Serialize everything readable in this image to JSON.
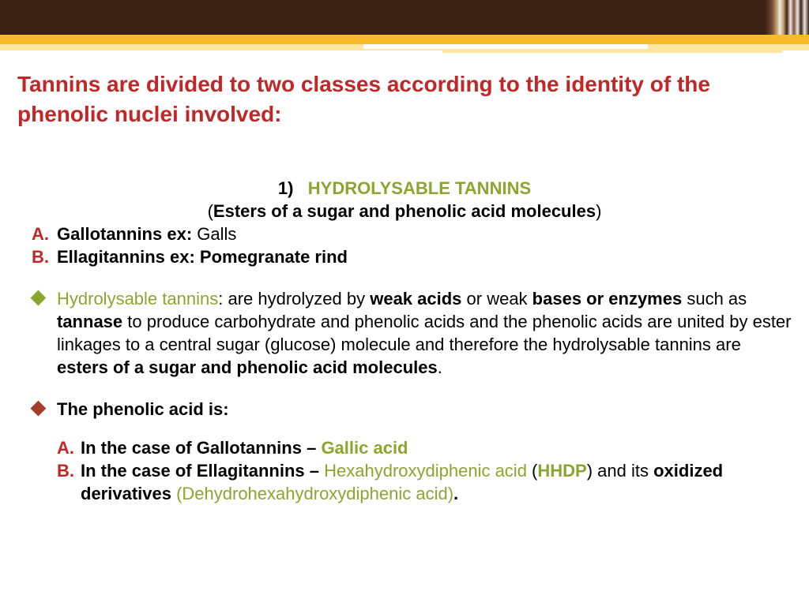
{
  "colors": {
    "dark_band": "#3a2113",
    "yellow_band": "#f6bb2b",
    "light_band": "#ffe6a0",
    "title_red": "#c12727",
    "olive": "#8aa62f",
    "text_black": "#000000",
    "background": "#ffffff"
  },
  "title": "Tannins are divided to two classes according to the identity of the phenolic nuclei involved:",
  "section_number": "1)",
  "section_heading": "HYDROLYSABLE TANNINS",
  "section_sub_open": "(",
  "section_sub_bold": "Esters of a sugar and phenolic acid molecules",
  "section_sub_close": ")",
  "item_a_marker": "A.",
  "item_a_bold": "Gallotannins ex:",
  "item_a_rest": " Galls",
  "item_b_marker": "B.",
  "item_b_bold": "Ellagitannins ex: Pomegranate rind",
  "para1_lead": "Hydrolysable tannins",
  "para1_seg1": ": are hydrolyzed by ",
  "para1_bold1": "weak acids",
  "para1_seg2": " or weak ",
  "para1_bold2": "bases or  enzymes",
  "para1_seg3": " such as ",
  "para1_bold3": "tannase",
  "para1_seg4": " to produce carbohydrate and phenolic acids and the phenolic acids are united by ester linkages to a central sugar (glucose) molecule and therefore the hydrolysable tannins are ",
  "para1_bold4": "esters of a sugar and phenolic acid molecules",
  "para1_end": ".",
  "para2": "The phenolic acid is:",
  "sub_a_marker": "A.",
  "sub_a_pre": "In the case of ",
  "sub_a_bold1": "Gallotannins",
  "sub_a_dash": " – ",
  "sub_a_olive": "Gallic acid",
  "sub_b_marker": "B.",
  "sub_b_pre": "In the case of ",
  "sub_b_bold1": "Ellagitannins",
  "sub_b_dash": " – ",
  "sub_b_olive1": "Hexahydroxydiphenic acid",
  "sub_b_seg1": " (",
  "sub_b_olive2": "HHDP",
  "sub_b_seg2": ") and its ",
  "sub_b_bold2": "oxidized derivatives ",
  "sub_b_olive3": "(Dehydrohexahydroxydiphenic acid)",
  "sub_b_end": "."
}
